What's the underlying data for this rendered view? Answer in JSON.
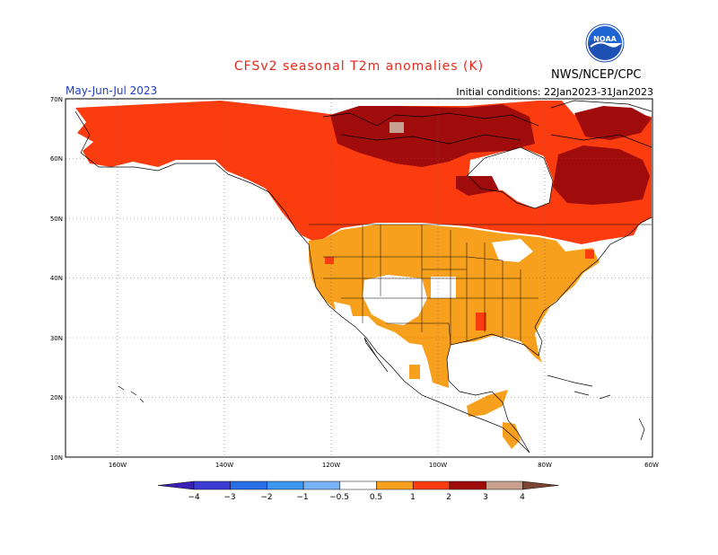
{
  "header": {
    "title": "CFSv2 seasonal T2m anomalies (K)",
    "valid_period": "May-Jun-Jul 2023",
    "initial_conditions": "Initial conditions: 22Jan2023-31Jan2023",
    "organization": "NWS/NCEP/CPC",
    "logo_text": "NOAA"
  },
  "map": {
    "lat_labels": [
      "70N",
      "60N",
      "50N",
      "40N",
      "30N",
      "20N",
      "10N"
    ],
    "lon_labels": [
      "160W",
      "140W",
      "120W",
      "100W",
      "80W",
      "60W"
    ],
    "regions": [
      {
        "name": "Canadian Arctic",
        "anomaly_class": "2 to 3"
      },
      {
        "name": "Northern Quebec / Labrador",
        "anomaly_class": "2 to 3"
      },
      {
        "name": "Alaska and Canada",
        "anomaly_class": "1 to 2"
      },
      {
        "name": "Contiguous United States",
        "anomaly_class": "0.5 to 1"
      },
      {
        "name": "Mexico (north and east)",
        "anomaly_class": "0.5 to 1"
      },
      {
        "name": "Southwest US patches",
        "anomaly_class": "-0.5 to 0.5"
      }
    ]
  },
  "legend": {
    "labels": [
      "−4",
      "−3",
      "−2",
      "−1",
      "−0.5",
      "0.5",
      "1",
      "2",
      "3",
      "4"
    ],
    "colors": [
      "#3c1fb4",
      "#3c3cd2",
      "#2a6ee6",
      "#3c96f0",
      "#78b4f5",
      "#ffffff",
      "#f7a01e",
      "#fa3c0f",
      "#a00c0c",
      "#c8a090",
      "#7a4632"
    ]
  }
}
